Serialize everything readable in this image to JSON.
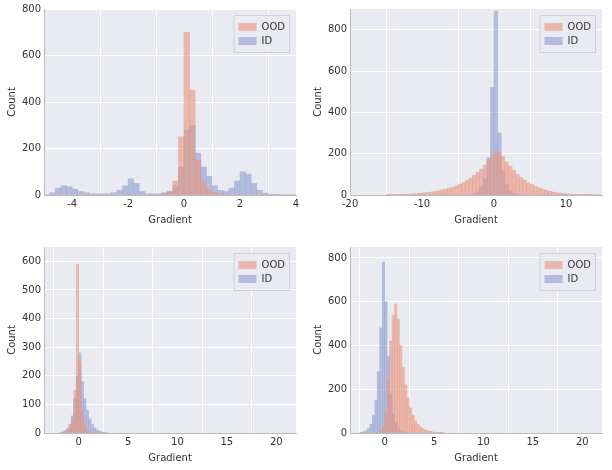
{
  "chart_data": [
    {
      "type": "histogram",
      "xlabel": "Gradient",
      "ylabel": "Count",
      "bins": [
        -5,
        -4.8,
        -4.6,
        -4.4,
        -4.2,
        -4,
        -3.8,
        -3.6,
        -3.4,
        -3.2,
        -3,
        -2.8,
        -2.6,
        -2.4,
        -2.2,
        -2,
        -1.8,
        -1.6,
        -1.4,
        -1.2,
        -1,
        -0.8,
        -0.6,
        -0.4,
        -0.2,
        0,
        0.2,
        0.4,
        0.6,
        0.8,
        1,
        1.2,
        1.4,
        1.6,
        1.8,
        2,
        2.2,
        2.4,
        2.6,
        2.8,
        3,
        3.2,
        3.4,
        3.6,
        3.8,
        4
      ],
      "series": [
        {
          "name": "OOD",
          "color": "#e8957e",
          "values": [
            0,
            0,
            0,
            0,
            0,
            0,
            0,
            0,
            0,
            0,
            0,
            0,
            0,
            0,
            0,
            0,
            0,
            0,
            0,
            0,
            0,
            5,
            15,
            60,
            250,
            700,
            450,
            150,
            60,
            25,
            10,
            5,
            2,
            0,
            0,
            0,
            0,
            0,
            0,
            0,
            0,
            0,
            0,
            0,
            0
          ]
        },
        {
          "name": "ID",
          "color": "#8c9fd0",
          "values": [
            0,
            10,
            30,
            40,
            35,
            25,
            15,
            10,
            5,
            5,
            5,
            5,
            10,
            20,
            40,
            70,
            50,
            15,
            5,
            5,
            5,
            10,
            15,
            40,
            120,
            280,
            300,
            180,
            120,
            80,
            40,
            20,
            15,
            30,
            60,
            100,
            90,
            50,
            20,
            8,
            3,
            1,
            0,
            0,
            0
          ]
        }
      ],
      "xlim": [
        -5,
        4
      ],
      "xticks": [
        -4,
        -2,
        0,
        2,
        4
      ],
      "ylim": [
        0,
        800
      ],
      "yticks": [
        0,
        200,
        400,
        600,
        800
      ],
      "grid": true,
      "legend": "upper right"
    },
    {
      "type": "histogram",
      "xlabel": "Gradient",
      "ylabel": "Count",
      "bins": [
        -15,
        -14.5,
        -14,
        -13.5,
        -13,
        -12.5,
        -12,
        -11.5,
        -11,
        -10.5,
        -10,
        -9.5,
        -9,
        -8.5,
        -8,
        -7.5,
        -7,
        -6.5,
        -6,
        -5.5,
        -5,
        -4.5,
        -4,
        -3.5,
        -3,
        -2.5,
        -2,
        -1.5,
        -1,
        -0.5,
        0,
        0.5,
        1,
        1.5,
        2,
        2.5,
        3,
        3.5,
        4,
        4.5,
        5,
        5.5,
        6,
        6.5,
        7,
        7.5,
        8,
        8.5,
        9,
        9.5,
        10,
        10.5,
        11,
        11.5,
        12,
        12.5,
        13,
        13.5,
        14,
        14.5,
        15
      ],
      "series": [
        {
          "name": "OOD",
          "color": "#e8957e",
          "values": [
            1,
            1,
            2,
            2,
            3,
            3,
            4,
            5,
            6,
            8,
            10,
            12,
            14,
            17,
            20,
            24,
            28,
            33,
            38,
            44,
            52,
            60,
            70,
            82,
            95,
            110,
            125,
            145,
            170,
            195,
            210,
            205,
            185,
            160,
            140,
            120,
            100,
            85,
            72,
            60,
            50,
            42,
            35,
            28,
            23,
            18,
            14,
            11,
            9,
            7,
            5,
            4,
            3,
            2,
            2,
            1,
            1,
            1,
            0,
            0
          ]
        },
        {
          "name": "ID",
          "color": "#8c9fd0",
          "values": [
            0,
            0,
            0,
            0,
            0,
            0,
            0,
            0,
            0,
            0,
            0,
            0,
            0,
            0,
            0,
            0,
            0,
            0,
            0,
            0,
            0,
            0,
            0,
            0,
            5,
            15,
            40,
            80,
            180,
            520,
            890,
            300,
            120,
            50,
            20,
            8,
            3,
            0,
            0,
            0,
            0,
            0,
            0,
            0,
            0,
            0,
            0,
            0,
            0,
            0,
            0,
            0,
            0,
            0,
            0,
            0,
            0,
            0,
            0,
            0
          ]
        }
      ],
      "xlim": [
        -20,
        15
      ],
      "xticks": [
        -20,
        -10,
        0,
        10
      ],
      "ylim": [
        0,
        900
      ],
      "yticks": [
        0,
        200,
        400,
        600,
        800
      ],
      "grid": true,
      "legend": "upper right"
    },
    {
      "type": "histogram",
      "xlabel": "Gradient",
      "ylabel": "Count",
      "bins": [
        -2,
        -1.75,
        -1.5,
        -1.25,
        -1,
        -0.75,
        -0.5,
        -0.25,
        0,
        0.25,
        0.5,
        0.75,
        1,
        1.25,
        1.5,
        1.75,
        2,
        2.25,
        2.5,
        2.75,
        3
      ],
      "series": [
        {
          "name": "OOD",
          "color": "#e8957e",
          "values": [
            0,
            2,
            5,
            10,
            20,
            50,
            150,
            590,
            250,
            80,
            30,
            12,
            5,
            2,
            1,
            0,
            0,
            0,
            0,
            0
          ]
        },
        {
          "name": "ID",
          "color": "#8c9fd0",
          "values": [
            0,
            3,
            8,
            15,
            30,
            60,
            120,
            200,
            280,
            180,
            120,
            80,
            50,
            30,
            18,
            10,
            6,
            3,
            1,
            0
          ]
        }
      ],
      "xlim": [
        -3.5,
        22
      ],
      "xticks": [
        0,
        5,
        10,
        15,
        20
      ],
      "ylim": [
        0,
        650
      ],
      "yticks": [
        0,
        100,
        200,
        300,
        400,
        500,
        600
      ],
      "grid": true,
      "legend": "upper right"
    },
    {
      "type": "histogram",
      "xlabel": "Gradient",
      "ylabel": "Count",
      "bins": [
        -2.5,
        -2.25,
        -2,
        -1.75,
        -1.5,
        -1.25,
        -1,
        -0.75,
        -0.5,
        -0.25,
        0,
        0.25,
        0.5,
        0.75,
        1,
        1.25,
        1.5,
        1.75,
        2,
        2.25,
        2.5,
        2.75,
        3,
        3.25,
        3.5,
        3.75,
        4,
        4.25,
        4.5,
        4.75,
        5,
        5.25,
        5.5,
        5.75,
        6
      ],
      "series": [
        {
          "name": "OOD",
          "color": "#e8957e",
          "values": [
            0,
            0,
            0,
            0,
            0,
            0,
            1,
            3,
            10,
            30,
            100,
            250,
            420,
            540,
            590,
            520,
            400,
            300,
            220,
            160,
            115,
            80,
            55,
            40,
            28,
            20,
            14,
            10,
            7,
            5,
            3,
            2,
            1,
            1
          ]
        },
        {
          "name": "ID",
          "color": "#8c9fd0",
          "values": [
            2,
            5,
            10,
            20,
            40,
            80,
            150,
            280,
            480,
            780,
            600,
            350,
            180,
            90,
            45,
            20,
            10,
            5,
            2,
            1,
            0,
            0,
            0,
            0,
            0,
            0,
            0,
            0,
            0,
            0,
            0,
            0,
            0,
            0
          ]
        }
      ],
      "xlim": [
        -3.5,
        22
      ],
      "xticks": [
        0,
        5,
        10,
        15,
        20
      ],
      "ylim": [
        0,
        850
      ],
      "yticks": [
        0,
        200,
        400,
        600,
        800
      ],
      "grid": true,
      "legend": "upper right"
    }
  ]
}
